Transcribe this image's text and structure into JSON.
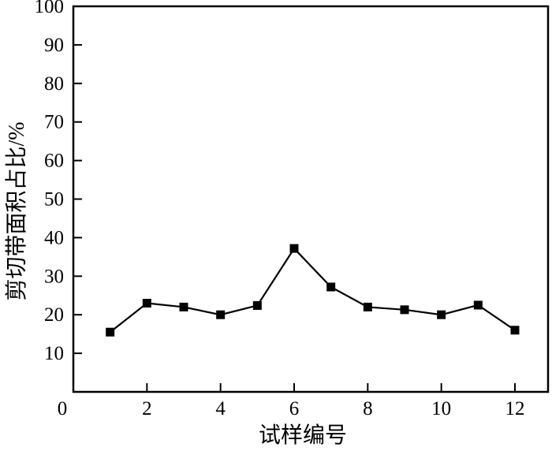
{
  "figure": {
    "background": "#ffffff",
    "frame_color": "#000000"
  },
  "chart_data": {
    "type": "line",
    "title": "",
    "xlabel": "试样编号",
    "ylabel": "剪切带面积占比/%",
    "x": [
      1,
      2,
      3,
      4,
      5,
      6,
      7,
      8,
      9,
      10,
      11,
      12
    ],
    "y": [
      15.5,
      23.0,
      22.0,
      20.0,
      22.4,
      37.2,
      27.2,
      22.0,
      21.3,
      20.0,
      22.5,
      16.0
    ],
    "xlim": [
      0,
      12.9
    ],
    "ylim": [
      0,
      100
    ],
    "x_ticks": [
      0,
      2,
      4,
      6,
      8,
      10,
      12
    ],
    "y_ticks": [
      10,
      20,
      30,
      40,
      50,
      60,
      70,
      80,
      90,
      100
    ],
    "grid": false,
    "legend": null,
    "marker": "square",
    "marker_size": 11,
    "line_width": 2.2,
    "line_color": "#000000",
    "marker_color": "#000000"
  }
}
